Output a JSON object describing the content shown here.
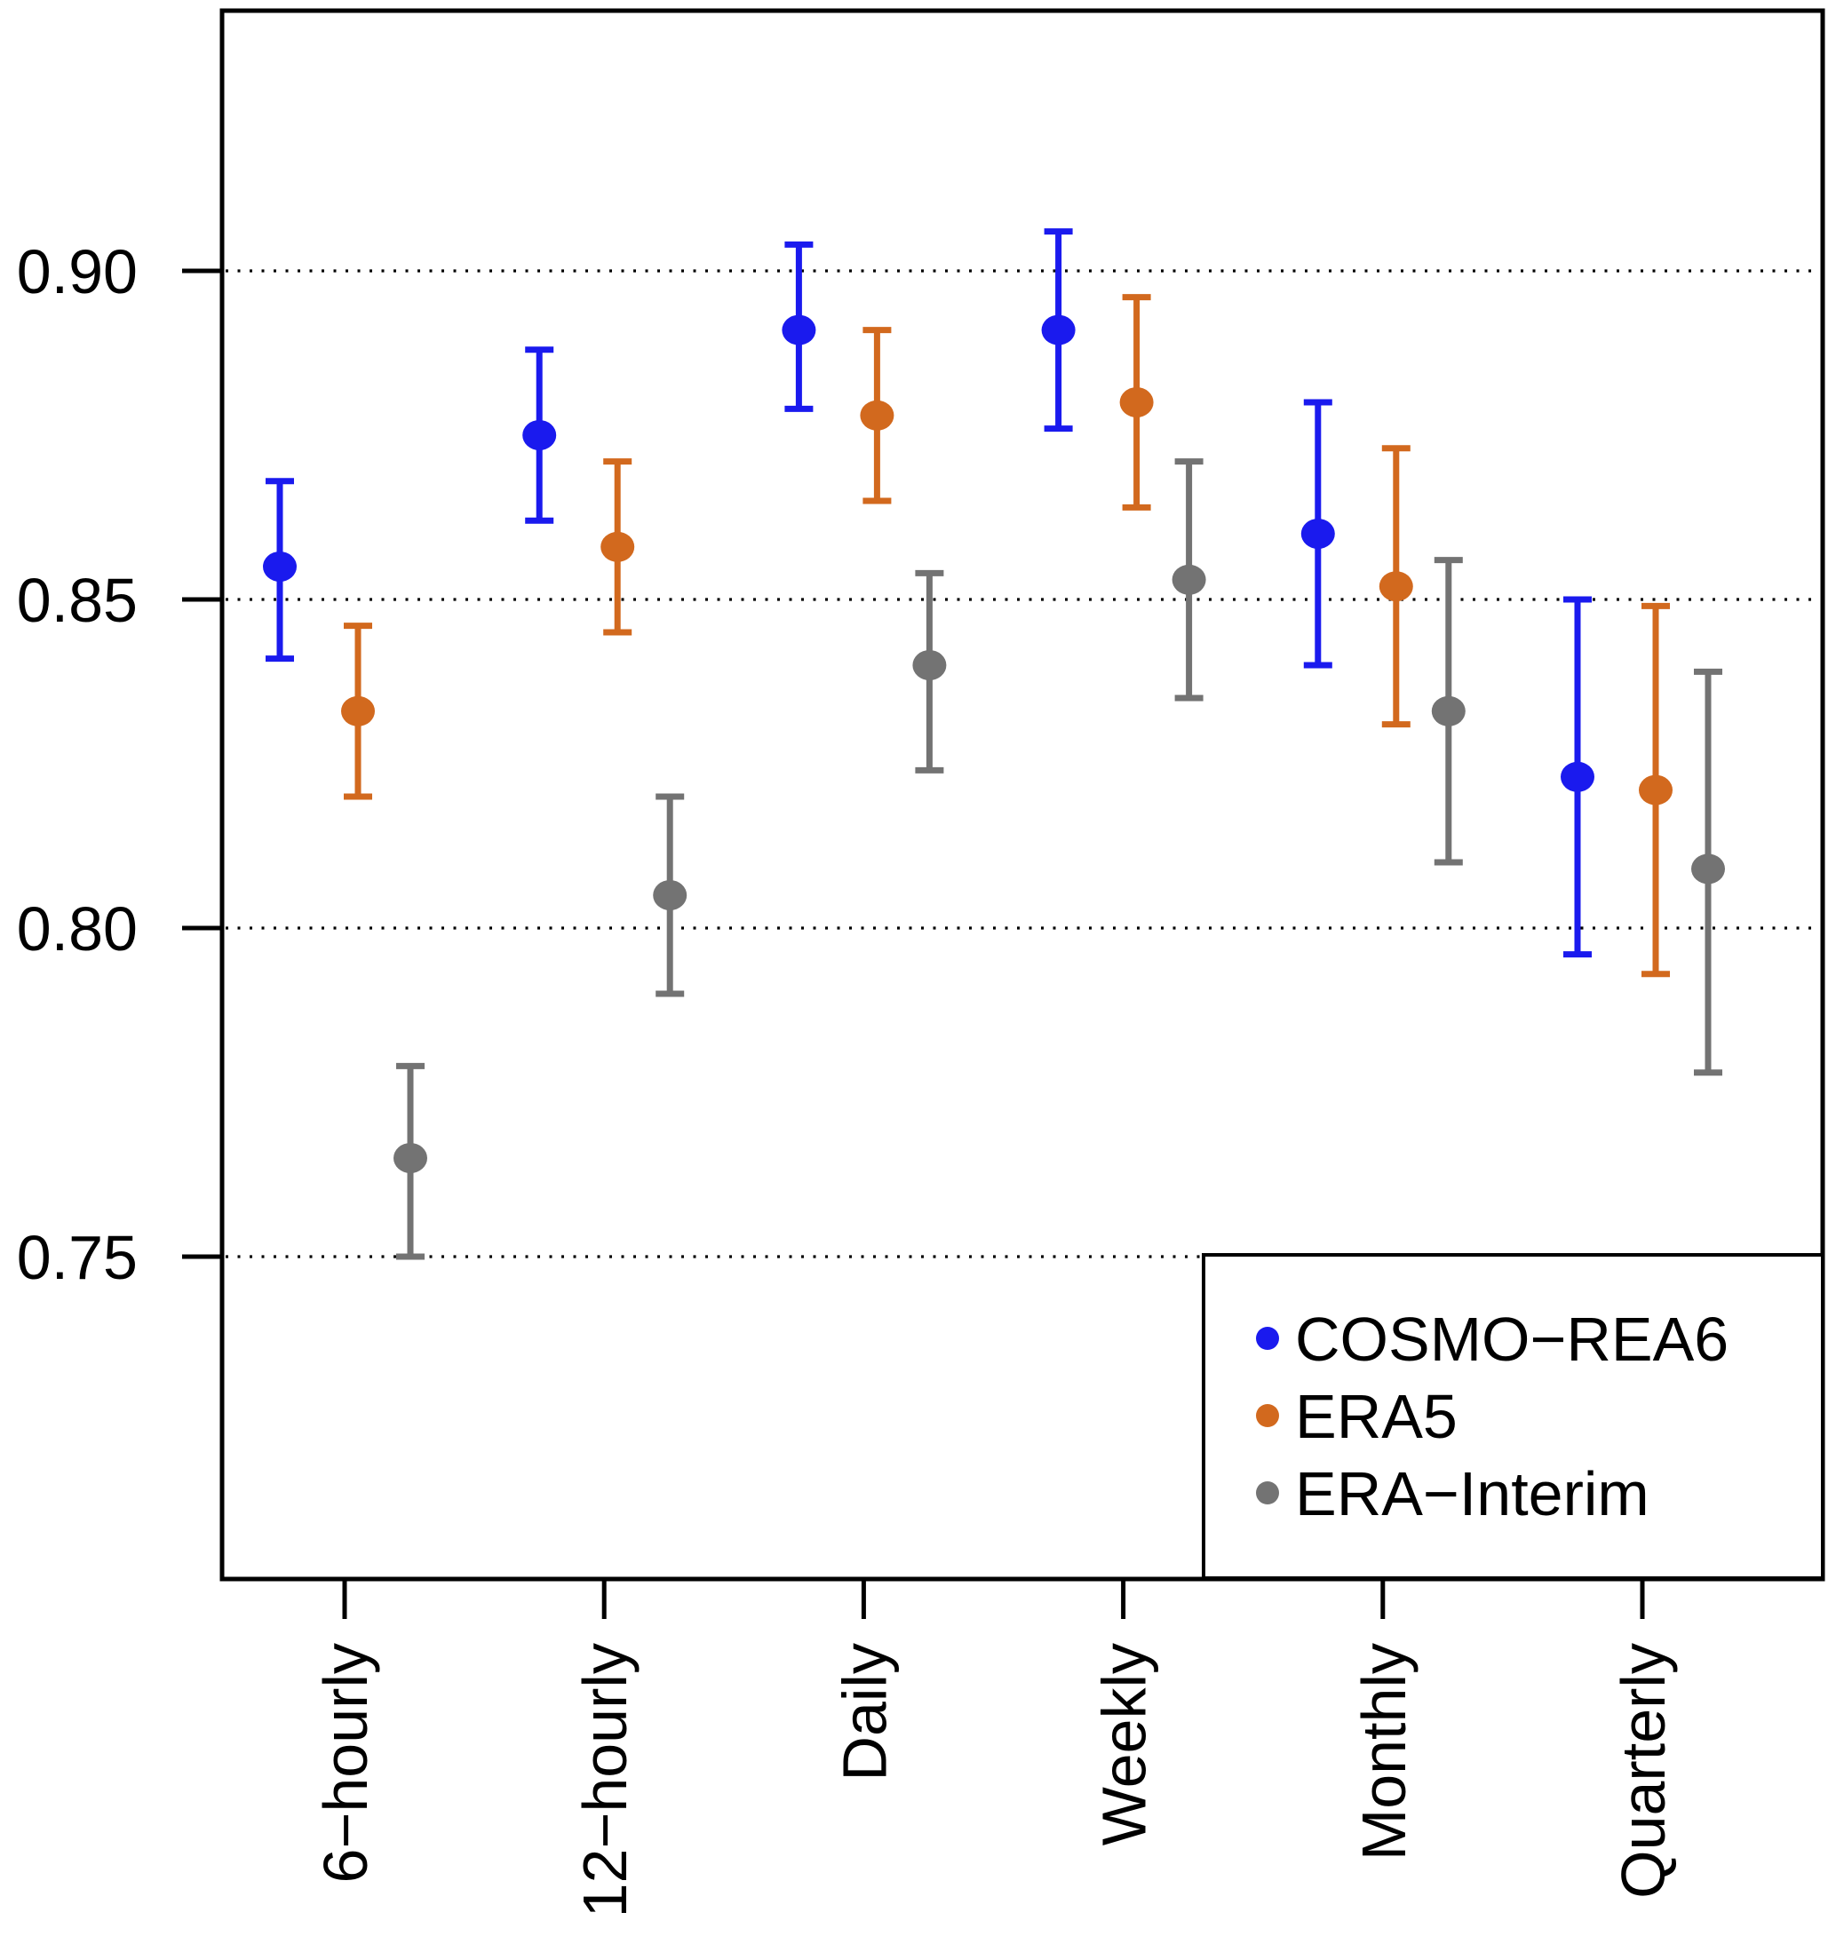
{
  "chart_data": {
    "type": "scatter",
    "title": "",
    "xlabel": "",
    "ylabel": "",
    "categories": [
      "6−hourly",
      "12−hourly",
      "Daily",
      "Weekly",
      "Monthly",
      "Quarterly"
    ],
    "y_ticks": [
      0.75,
      0.8,
      0.85,
      0.9
    ],
    "y_tick_labels": [
      "0.75",
      "0.80",
      "0.85",
      "0.90"
    ],
    "ylim": [
      0.7,
      0.94
    ],
    "grid": "horizontal dotted lines at y ticks",
    "legend_position": "bottom-right inside plot",
    "marker": "filled circle with error bars",
    "series": [
      {
        "name": "COSMO−REA6",
        "color": "#1a1aee",
        "values": [
          0.855,
          0.875,
          0.891,
          0.891,
          0.86,
          0.823
        ],
        "lower": [
          0.841,
          0.862,
          0.879,
          0.876,
          0.84,
          0.796
        ],
        "upper": [
          0.868,
          0.888,
          0.904,
          0.906,
          0.88,
          0.85
        ]
      },
      {
        "name": "ERA5",
        "color": "#d2691e",
        "values": [
          0.833,
          0.858,
          0.878,
          0.88,
          0.852,
          0.821
        ],
        "lower": [
          0.82,
          0.845,
          0.865,
          0.864,
          0.831,
          0.793
        ],
        "upper": [
          0.846,
          0.871,
          0.891,
          0.896,
          0.873,
          0.849
        ]
      },
      {
        "name": "ERA−Interim",
        "color": "#737373",
        "values": [
          0.765,
          0.805,
          0.84,
          0.853,
          0.833,
          0.809
        ],
        "lower": [
          0.75,
          0.79,
          0.824,
          0.835,
          0.81,
          0.778
        ],
        "upper": [
          0.779,
          0.82,
          0.854,
          0.871,
          0.856,
          0.839
        ]
      }
    ],
    "colors": {
      "axis": "#000000",
      "grid": "#000000",
      "background": "#ffffff"
    }
  }
}
